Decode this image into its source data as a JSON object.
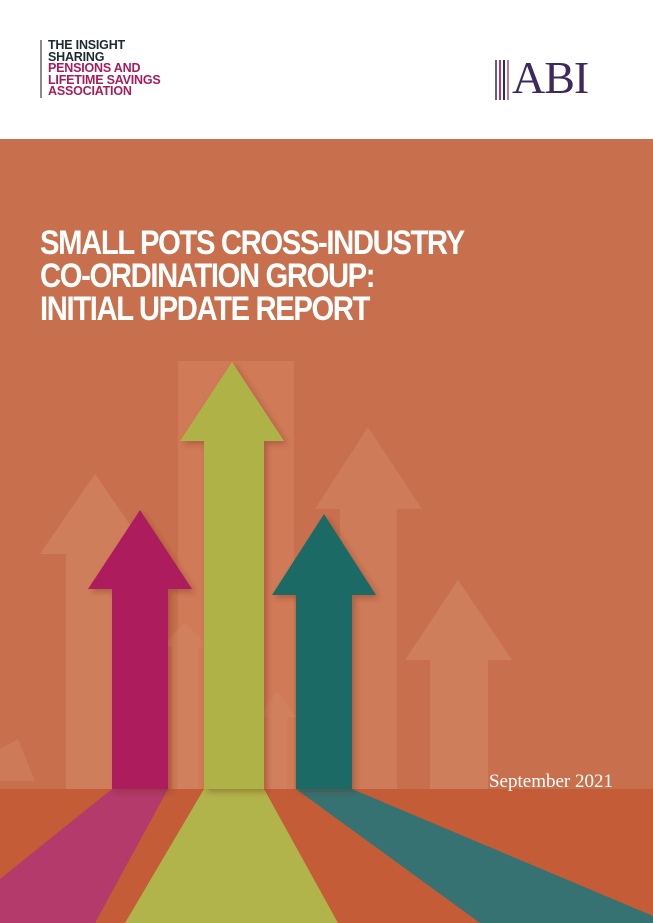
{
  "header": {
    "plsa_logo": {
      "lines": [
        "THE INSIGHT",
        "SHARING",
        "PENSIONS AND",
        "LIFETIME SAVINGS",
        "ASSOCIATION"
      ]
    },
    "abi_logo": {
      "text": "ABI"
    }
  },
  "cover": {
    "title_lines": [
      "SMALL POTS CROSS-INDUSTRY",
      "CO-ORDINATION GROUP:",
      "INITIAL UPDATE REPORT"
    ],
    "date": "September 2021"
  },
  "colors": {
    "background": "#c8704d",
    "arrow_magenta": "#ad1d5b",
    "arrow_green": "#afb347",
    "arrow_teal": "#1e6a66",
    "abi_purple": "#3c2a5e",
    "plsa_magenta": "#a81c5e"
  }
}
